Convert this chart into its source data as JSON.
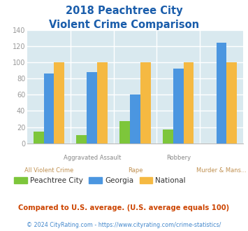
{
  "title_line1": "2018 Peachtree City",
  "title_line2": "Violent Crime Comparison",
  "cat_top": [
    "",
    "Aggravated Assault",
    "",
    "Robbery",
    ""
  ],
  "cat_bot": [
    "All Violent Crime",
    "",
    "Rape",
    "",
    "Murder & Mans..."
  ],
  "peachtree": [
    14,
    10,
    27,
    17,
    0
  ],
  "georgia": [
    86,
    88,
    60,
    92,
    124
  ],
  "national": [
    100,
    100,
    100,
    100,
    100
  ],
  "colors": {
    "peachtree": "#7dc63b",
    "georgia": "#4b96e0",
    "national": "#f5b942",
    "title": "#1a5dab",
    "bg_plot": "#d9e9ef",
    "grid": "#ffffff",
    "ytick_text": "#999999",
    "xtick_top": "#888888",
    "xtick_bot": "#c09050",
    "footnote_text": "#cc4400",
    "copyright_text": "#aaaaaa",
    "url_text": "#4488cc"
  },
  "ylim": [
    0,
    140
  ],
  "yticks": [
    0,
    20,
    40,
    60,
    80,
    100,
    120,
    140
  ],
  "legend_labels": [
    "Peachtree City",
    "Georgia",
    "National"
  ],
  "footnote": "Compared to U.S. average. (U.S. average equals 100)",
  "copyright_pre": "© 2024 CityRating.com - ",
  "copyright_url": "https://www.cityrating.com/crime-statistics/"
}
